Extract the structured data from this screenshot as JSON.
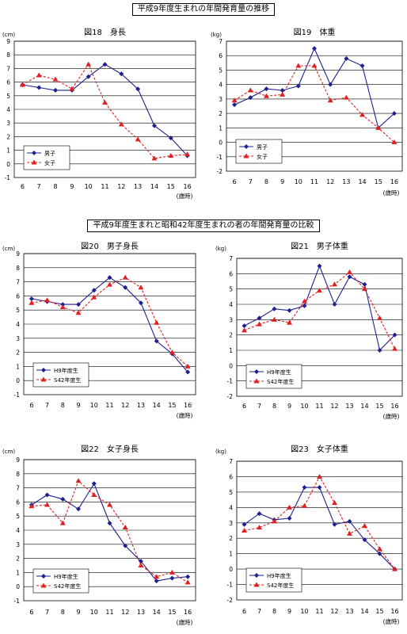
{
  "section1_title": "平成9年度生まれの年間発育量の推移",
  "section2_title": "平成9年度生まれと昭和42年度生まれの者の年間発育量の比較",
  "colors": {
    "boys": "#1F1F8F",
    "girls": "#E02020",
    "grid": "#000000"
  },
  "chart_data": [
    {
      "type": "line",
      "title": "図18　身長",
      "unit": "(cm)",
      "xlabel": "(歳時)",
      "x": [
        6,
        7,
        8,
        9,
        10,
        11,
        12,
        13,
        14,
        15,
        16
      ],
      "ylim": [
        -1,
        9
      ],
      "yticks": [
        -1,
        0,
        1,
        2,
        3,
        4,
        5,
        6,
        7,
        8,
        9
      ],
      "legend_position": "bottom-left",
      "series": [
        {
          "name": "男子",
          "color": "#1F1F8F",
          "dashed": false,
          "marker": "diamond",
          "values": [
            5.8,
            5.6,
            5.4,
            5.4,
            6.4,
            7.3,
            6.6,
            5.5,
            2.8,
            1.9,
            0.6
          ]
        },
        {
          "name": "女子",
          "color": "#E02020",
          "dashed": true,
          "marker": "triangle",
          "values": [
            5.8,
            6.5,
            6.2,
            5.5,
            7.3,
            4.5,
            2.9,
            1.8,
            0.4,
            0.6,
            0.7
          ]
        }
      ]
    },
    {
      "type": "line",
      "title": "図19　体重",
      "unit": "(kg)",
      "xlabel": "(歳時)",
      "x": [
        6,
        7,
        8,
        9,
        10,
        11,
        12,
        13,
        14,
        15,
        16
      ],
      "ylim": [
        -2,
        7
      ],
      "yticks": [
        -2,
        -1,
        0,
        1,
        2,
        3,
        4,
        5,
        6,
        7
      ],
      "legend_position": "bottom-left",
      "series": [
        {
          "name": "男子",
          "color": "#1F1F8F",
          "dashed": false,
          "marker": "diamond",
          "values": [
            2.6,
            3.1,
            3.7,
            3.6,
            3.9,
            6.5,
            4.0,
            5.8,
            5.3,
            1.0,
            2.0
          ]
        },
        {
          "name": "女子",
          "color": "#E02020",
          "dashed": true,
          "marker": "triangle",
          "values": [
            2.9,
            3.6,
            3.2,
            3.3,
            5.3,
            5.3,
            2.9,
            3.1,
            1.9,
            1.0,
            0.0
          ]
        }
      ]
    },
    {
      "type": "line",
      "title": "図20　男子身長",
      "unit": "(cm)",
      "xlabel": "(歳時)",
      "x": [
        6,
        7,
        8,
        9,
        10,
        11,
        12,
        13,
        14,
        15,
        16
      ],
      "ylim": [
        -1,
        9
      ],
      "yticks": [
        -1,
        0,
        1,
        2,
        3,
        4,
        5,
        6,
        7,
        8,
        9
      ],
      "legend_position": "bottom-left",
      "series": [
        {
          "name": "H9年度生",
          "color": "#1F1F8F",
          "dashed": false,
          "marker": "diamond",
          "values": [
            5.8,
            5.6,
            5.4,
            5.4,
            6.4,
            7.3,
            6.6,
            5.5,
            2.8,
            1.9,
            0.6
          ]
        },
        {
          "name": "S42年度生",
          "color": "#E02020",
          "dashed": true,
          "marker": "triangle",
          "values": [
            5.5,
            5.7,
            5.2,
            4.8,
            5.9,
            6.8,
            7.3,
            6.6,
            4.1,
            2.0,
            1.0
          ]
        }
      ]
    },
    {
      "type": "line",
      "title": "図21　男子体重",
      "unit": "(kg)",
      "xlabel": "(歳時)",
      "x": [
        6,
        7,
        8,
        9,
        10,
        11,
        12,
        13,
        14,
        15,
        16
      ],
      "ylim": [
        -2,
        7
      ],
      "yticks": [
        -2,
        -1,
        0,
        1,
        2,
        3,
        4,
        5,
        6,
        7
      ],
      "legend_position": "bottom-left",
      "series": [
        {
          "name": "H9年度生",
          "color": "#1F1F8F",
          "dashed": false,
          "marker": "diamond",
          "values": [
            2.6,
            3.1,
            3.7,
            3.6,
            3.9,
            6.5,
            4.0,
            5.8,
            5.3,
            1.0,
            2.0
          ]
        },
        {
          "name": "S42年度生",
          "color": "#E02020",
          "dashed": true,
          "marker": "triangle",
          "values": [
            2.3,
            2.7,
            3.0,
            2.8,
            4.2,
            4.9,
            5.3,
            6.1,
            5.0,
            3.1,
            1.1
          ]
        }
      ]
    },
    {
      "type": "line",
      "title": "図22　女子身長",
      "unit": "(cm)",
      "xlabel": "(歳時)",
      "x": [
        6,
        7,
        8,
        9,
        10,
        11,
        12,
        13,
        14,
        15,
        16
      ],
      "ylim": [
        -1,
        9
      ],
      "yticks": [
        -1,
        0,
        1,
        2,
        3,
        4,
        5,
        6,
        7,
        8,
        9
      ],
      "legend_position": "bottom-left",
      "series": [
        {
          "name": "H9年度生",
          "color": "#1F1F8F",
          "dashed": false,
          "marker": "diamond",
          "values": [
            5.8,
            6.5,
            6.2,
            5.5,
            7.3,
            4.5,
            2.9,
            1.8,
            0.4,
            0.6,
            0.7
          ]
        },
        {
          "name": "S42年度生",
          "color": "#E02020",
          "dashed": true,
          "marker": "triangle",
          "values": [
            5.7,
            5.8,
            4.5,
            7.5,
            6.5,
            5.8,
            4.2,
            1.5,
            0.7,
            1.0,
            0.3
          ]
        }
      ]
    },
    {
      "type": "line",
      "title": "図23　女子体重",
      "unit": "(kg)",
      "xlabel": "(歳時)",
      "x": [
        6,
        7,
        8,
        9,
        10,
        11,
        12,
        13,
        14,
        15,
        16
      ],
      "ylim": [
        -2,
        7
      ],
      "yticks": [
        -2,
        -1,
        0,
        1,
        2,
        3,
        4,
        5,
        6,
        7
      ],
      "legend_position": "bottom-left",
      "series": [
        {
          "name": "H9年度生",
          "color": "#1F1F8F",
          "dashed": false,
          "marker": "diamond",
          "values": [
            2.9,
            3.6,
            3.2,
            3.3,
            5.3,
            5.3,
            2.9,
            3.1,
            1.9,
            1.0,
            0.0
          ]
        },
        {
          "name": "S42年度生",
          "color": "#E02020",
          "dashed": true,
          "marker": "triangle",
          "values": [
            2.5,
            2.7,
            3.1,
            4.0,
            4.1,
            6.0,
            4.3,
            2.3,
            2.8,
            1.3,
            0.0
          ]
        }
      ]
    }
  ]
}
